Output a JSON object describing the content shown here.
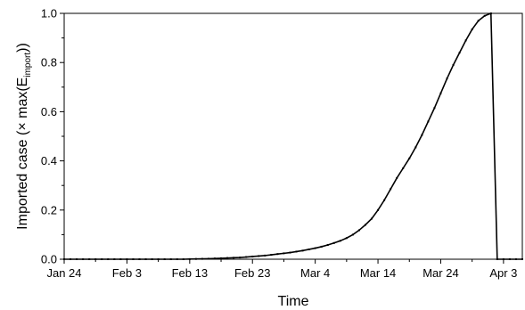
{
  "chart_data": {
    "type": "line",
    "xlabel": "Time",
    "ylabel": "Imported case (× max(E",
    "ylabel_subscript": "import",
    "ylabel_end": "))",
    "x_ticks": [
      "Jan 24",
      "Feb 3",
      "Feb 13",
      "Feb 23",
      "Mar 4",
      "Mar 14",
      "Mar 24",
      "Apr 3"
    ],
    "y_ticks": [
      "0.0",
      "0.2",
      "0.4",
      "0.6",
      "0.8",
      "1.0"
    ],
    "xlim": [
      "2020-01-24",
      "2020-04-06"
    ],
    "ylim": [
      0,
      1.0
    ],
    "grid": false,
    "series": [
      {
        "x": [
          "2020-01-24",
          "2020-01-25",
          "2020-01-26",
          "2020-01-27",
          "2020-01-28",
          "2020-01-29",
          "2020-01-30",
          "2020-01-31",
          "2020-02-01",
          "2020-02-02",
          "2020-02-03",
          "2020-02-04",
          "2020-02-05",
          "2020-02-06",
          "2020-02-07",
          "2020-02-08",
          "2020-02-09",
          "2020-02-10",
          "2020-02-11",
          "2020-02-12",
          "2020-02-13",
          "2020-02-14",
          "2020-02-15",
          "2020-02-16",
          "2020-02-17",
          "2020-02-18",
          "2020-02-19",
          "2020-02-20",
          "2020-02-21",
          "2020-02-22",
          "2020-02-23",
          "2020-02-24",
          "2020-02-25",
          "2020-02-26",
          "2020-02-27",
          "2020-02-28",
          "2020-02-29",
          "2020-03-01",
          "2020-03-02",
          "2020-03-03",
          "2020-03-04",
          "2020-03-05",
          "2020-03-06",
          "2020-03-07",
          "2020-03-08",
          "2020-03-09",
          "2020-03-10",
          "2020-03-11",
          "2020-03-12",
          "2020-03-13",
          "2020-03-14",
          "2020-03-15",
          "2020-03-16",
          "2020-03-17",
          "2020-03-18",
          "2020-03-19",
          "2020-03-20",
          "2020-03-21",
          "2020-03-22",
          "2020-03-23",
          "2020-03-24",
          "2020-03-25",
          "2020-03-26",
          "2020-03-27",
          "2020-03-28",
          "2020-03-29",
          "2020-03-30",
          "2020-03-31",
          "2020-04-01",
          "2020-04-02",
          "2020-04-03",
          "2020-04-04",
          "2020-04-05",
          "2020-04-06"
        ],
        "values": [
          0,
          0,
          0,
          0,
          0,
          0,
          0,
          0,
          0,
          0,
          0,
          0,
          0,
          0,
          0,
          0,
          0,
          0,
          0,
          0,
          0.0005,
          0.001,
          0.0015,
          0.002,
          0.003,
          0.004,
          0.005,
          0.006,
          0.007,
          0.009,
          0.011,
          0.013,
          0.015,
          0.018,
          0.021,
          0.024,
          0.027,
          0.031,
          0.035,
          0.04,
          0.045,
          0.051,
          0.058,
          0.066,
          0.075,
          0.086,
          0.1,
          0.118,
          0.14,
          0.165,
          0.2,
          0.24,
          0.285,
          0.33,
          0.37,
          0.41,
          0.455,
          0.505,
          0.56,
          0.615,
          0.675,
          0.735,
          0.79,
          0.84,
          0.89,
          0.935,
          0.97,
          0.99,
          1.0,
          0,
          0,
          0,
          0,
          0
        ]
      }
    ]
  }
}
